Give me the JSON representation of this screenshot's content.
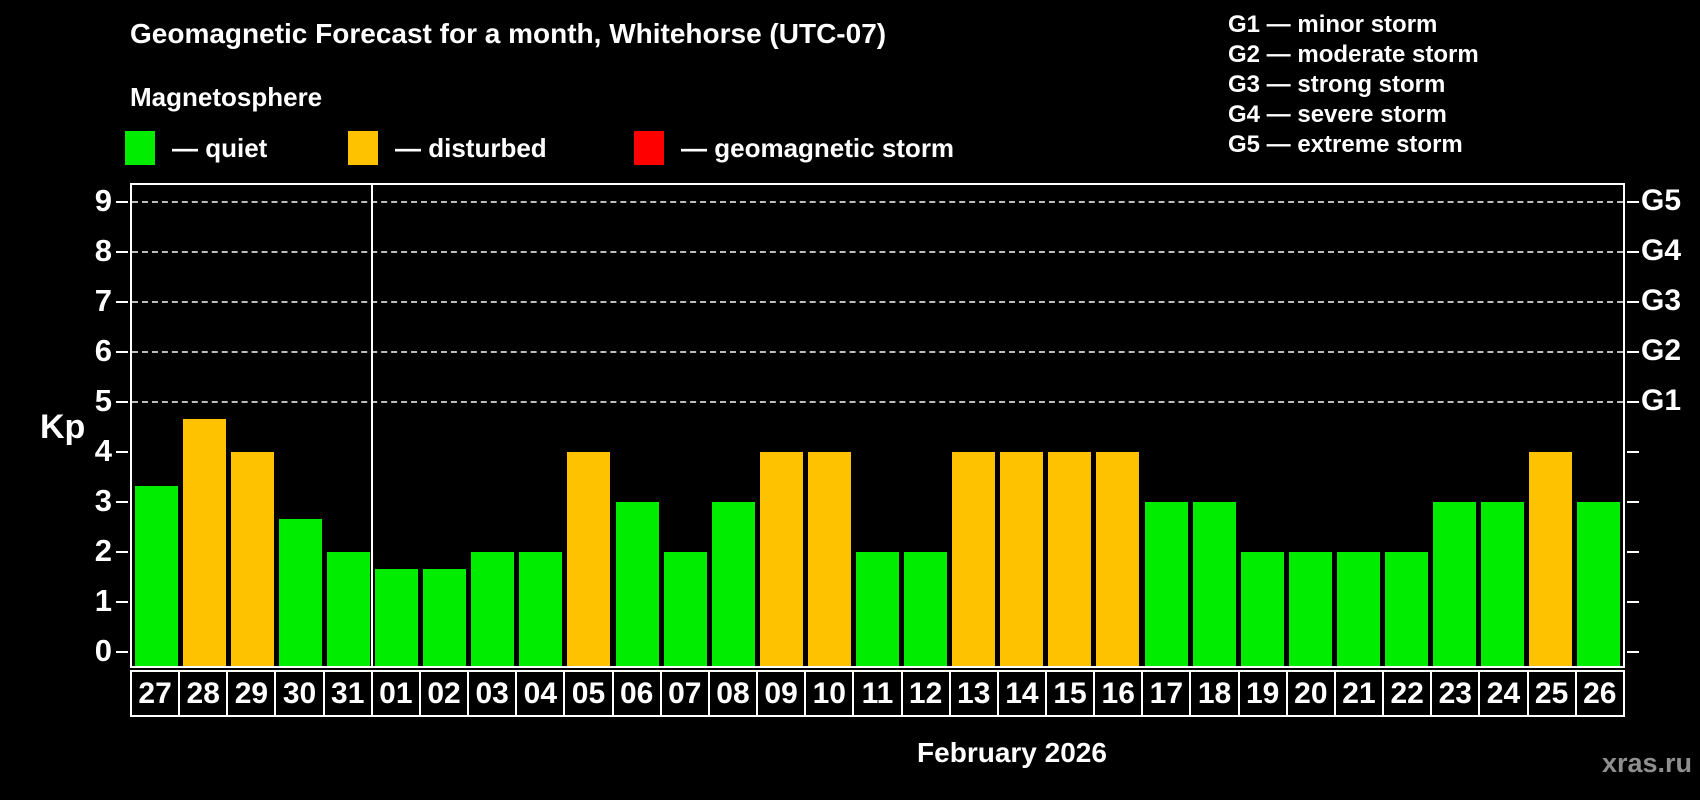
{
  "page": {
    "background": "#000000"
  },
  "header": {
    "title": "Geomagnetic Forecast for a month, Whitehorse (UTC-07)",
    "subtitle": "Magnetosphere"
  },
  "legend": {
    "items": [
      {
        "key": "quiet",
        "label": "— quiet",
        "color": "#00ED00"
      },
      {
        "key": "disturbed",
        "label": "— disturbed",
        "color": "#FFC200"
      },
      {
        "key": "storm",
        "label": "— geomagnetic storm",
        "color": "#FF0000"
      }
    ]
  },
  "storm_scale": {
    "items": [
      "G1 — minor storm",
      "G2 — moderate storm",
      "G3 — strong storm",
      "G4 — severe storm",
      "G5 — extreme storm"
    ]
  },
  "footer": {
    "xlabel": "February 2026",
    "watermark": "xras.ru"
  },
  "chart_data": {
    "type": "bar",
    "title": "Geomagnetic Forecast for a month, Whitehorse (UTC-07)",
    "ylabel": "Kp",
    "xlabel": "February 2026",
    "ylim": [
      -0.35,
      9.35
    ],
    "yticks": [
      0,
      1,
      2,
      3,
      4,
      5,
      6,
      7,
      8,
      9
    ],
    "gridlines_at": [
      5,
      6,
      7,
      8,
      9
    ],
    "grid": true,
    "legend_position": "top",
    "right_axis": [
      {
        "kp": 5,
        "label": "G1"
      },
      {
        "kp": 6,
        "label": "G2"
      },
      {
        "kp": 7,
        "label": "G3"
      },
      {
        "kp": 8,
        "label": "G4"
      },
      {
        "kp": 9,
        "label": "G5"
      }
    ],
    "month_separator_before_index": 5,
    "bars": [
      {
        "day": "27",
        "kp": 3.33,
        "status": "quiet"
      },
      {
        "day": "28",
        "kp": 4.67,
        "status": "disturbed"
      },
      {
        "day": "29",
        "kp": 4.0,
        "status": "disturbed"
      },
      {
        "day": "30",
        "kp": 2.67,
        "status": "quiet"
      },
      {
        "day": "31",
        "kp": 2.0,
        "status": "quiet"
      },
      {
        "day": "01",
        "kp": 1.67,
        "status": "quiet"
      },
      {
        "day": "02",
        "kp": 1.67,
        "status": "quiet"
      },
      {
        "day": "03",
        "kp": 2.0,
        "status": "quiet"
      },
      {
        "day": "04",
        "kp": 2.0,
        "status": "quiet"
      },
      {
        "day": "05",
        "kp": 4.0,
        "status": "disturbed"
      },
      {
        "day": "06",
        "kp": 3.0,
        "status": "quiet"
      },
      {
        "day": "07",
        "kp": 2.0,
        "status": "quiet"
      },
      {
        "day": "08",
        "kp": 3.0,
        "status": "quiet"
      },
      {
        "day": "09",
        "kp": 4.0,
        "status": "disturbed"
      },
      {
        "day": "10",
        "kp": 4.0,
        "status": "disturbed"
      },
      {
        "day": "11",
        "kp": 2.0,
        "status": "quiet"
      },
      {
        "day": "12",
        "kp": 2.0,
        "status": "quiet"
      },
      {
        "day": "13",
        "kp": 4.0,
        "status": "disturbed"
      },
      {
        "day": "14",
        "kp": 4.0,
        "status": "disturbed"
      },
      {
        "day": "15",
        "kp": 4.0,
        "status": "disturbed"
      },
      {
        "day": "16",
        "kp": 4.0,
        "status": "disturbed"
      },
      {
        "day": "17",
        "kp": 3.0,
        "status": "quiet"
      },
      {
        "day": "18",
        "kp": 3.0,
        "status": "quiet"
      },
      {
        "day": "19",
        "kp": 2.0,
        "status": "quiet"
      },
      {
        "day": "20",
        "kp": 2.0,
        "status": "quiet"
      },
      {
        "day": "21",
        "kp": 2.0,
        "status": "quiet"
      },
      {
        "day": "22",
        "kp": 2.0,
        "status": "quiet"
      },
      {
        "day": "23",
        "kp": 3.0,
        "status": "quiet"
      },
      {
        "day": "24",
        "kp": 3.0,
        "status": "quiet"
      },
      {
        "day": "25",
        "kp": 4.0,
        "status": "disturbed"
      },
      {
        "day": "26",
        "kp": 3.0,
        "status": "quiet"
      }
    ]
  }
}
